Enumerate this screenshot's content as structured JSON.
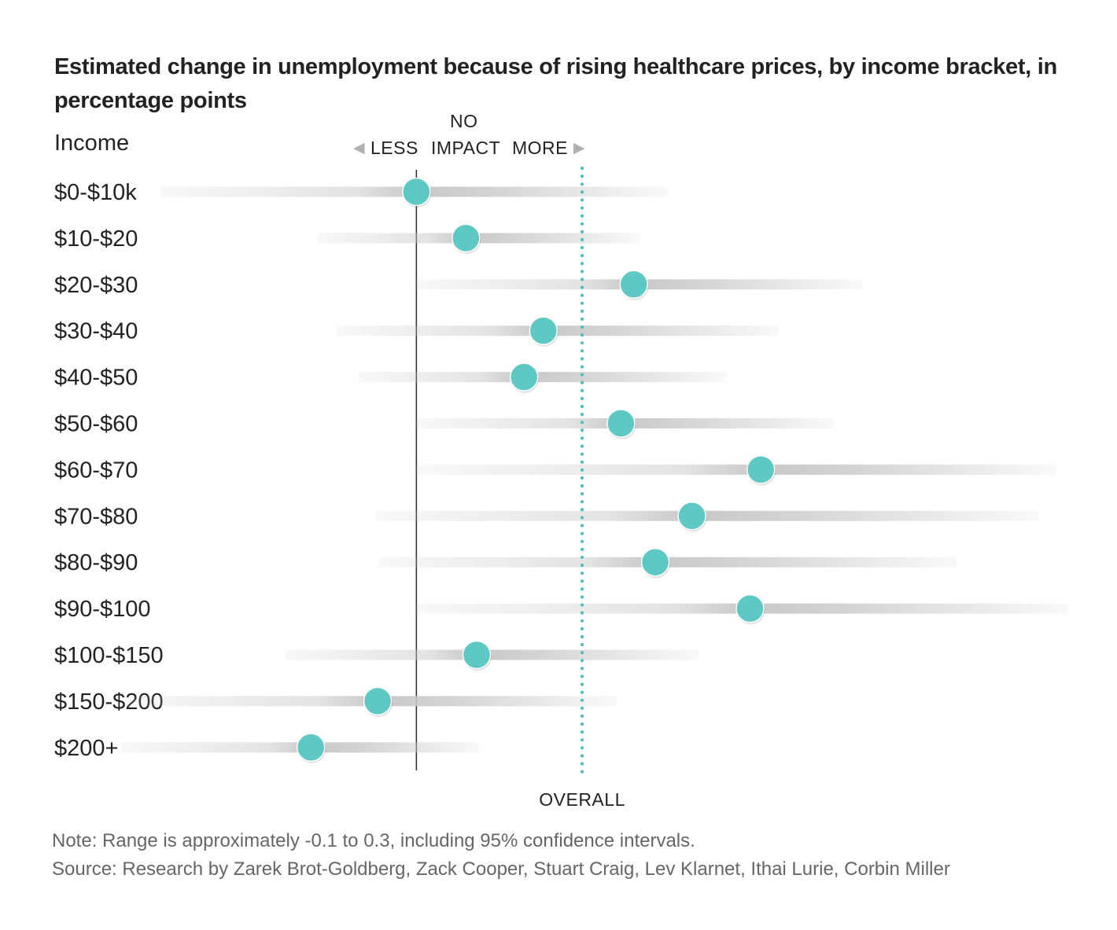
{
  "title": "Estimated change in unemployment because of rising healthcare prices, by income bracket, in percentage points",
  "labels": {
    "income": "Income",
    "less": "LESS",
    "no_impact_1": "NO",
    "no_impact_2": "IMPACT",
    "more": "MORE",
    "overall": "OVERALL"
  },
  "notes": {
    "note": "Note: Range is approximately -0.1 to 0.3, including 95% confidence intervals.",
    "source": "Source: Research by Zarek Brot-Goldberg, Zack Cooper, Stuart Craig, Lev Klarnet, Ithai Lurie, Corbin Miller"
  },
  "colors": {
    "point": "#5ec8c4",
    "overall_line": "#4fbcbc",
    "zero_line": "#333333",
    "range_bar": "#c8c8c8"
  },
  "chart_data": {
    "type": "dot-range",
    "title": "Estimated change in unemployment because of rising healthcare prices, by income bracket, in percentage points",
    "xlabel": "",
    "ylabel": "Income",
    "xlim": [
      -0.105,
      0.305
    ],
    "zero_line": 0,
    "overall": 0.077,
    "categories": [
      "$0-$10k",
      "$10-$20",
      "$20-$30",
      "$30-$40",
      "$40-$50",
      "$50-$60",
      "$60-$70",
      "$70-$80",
      "$80-$90",
      "$90-$100",
      "$100-$150",
      "$150-$200",
      "$200+"
    ],
    "estimates": [
      0.0,
      0.023,
      0.101,
      0.059,
      0.05,
      0.095,
      0.16,
      0.128,
      0.111,
      0.155,
      0.028,
      -0.018,
      -0.049
    ],
    "ci_low": [
      -0.119,
      -0.046,
      0.0,
      -0.037,
      -0.027,
      0.0,
      0.0,
      -0.019,
      -0.017,
      0.0,
      -0.061,
      -0.135,
      -0.137
    ],
    "ci_high": [
      0.117,
      0.104,
      0.207,
      0.168,
      0.144,
      0.194,
      0.297,
      0.289,
      0.251,
      0.303,
      0.131,
      0.093,
      0.029
    ]
  }
}
